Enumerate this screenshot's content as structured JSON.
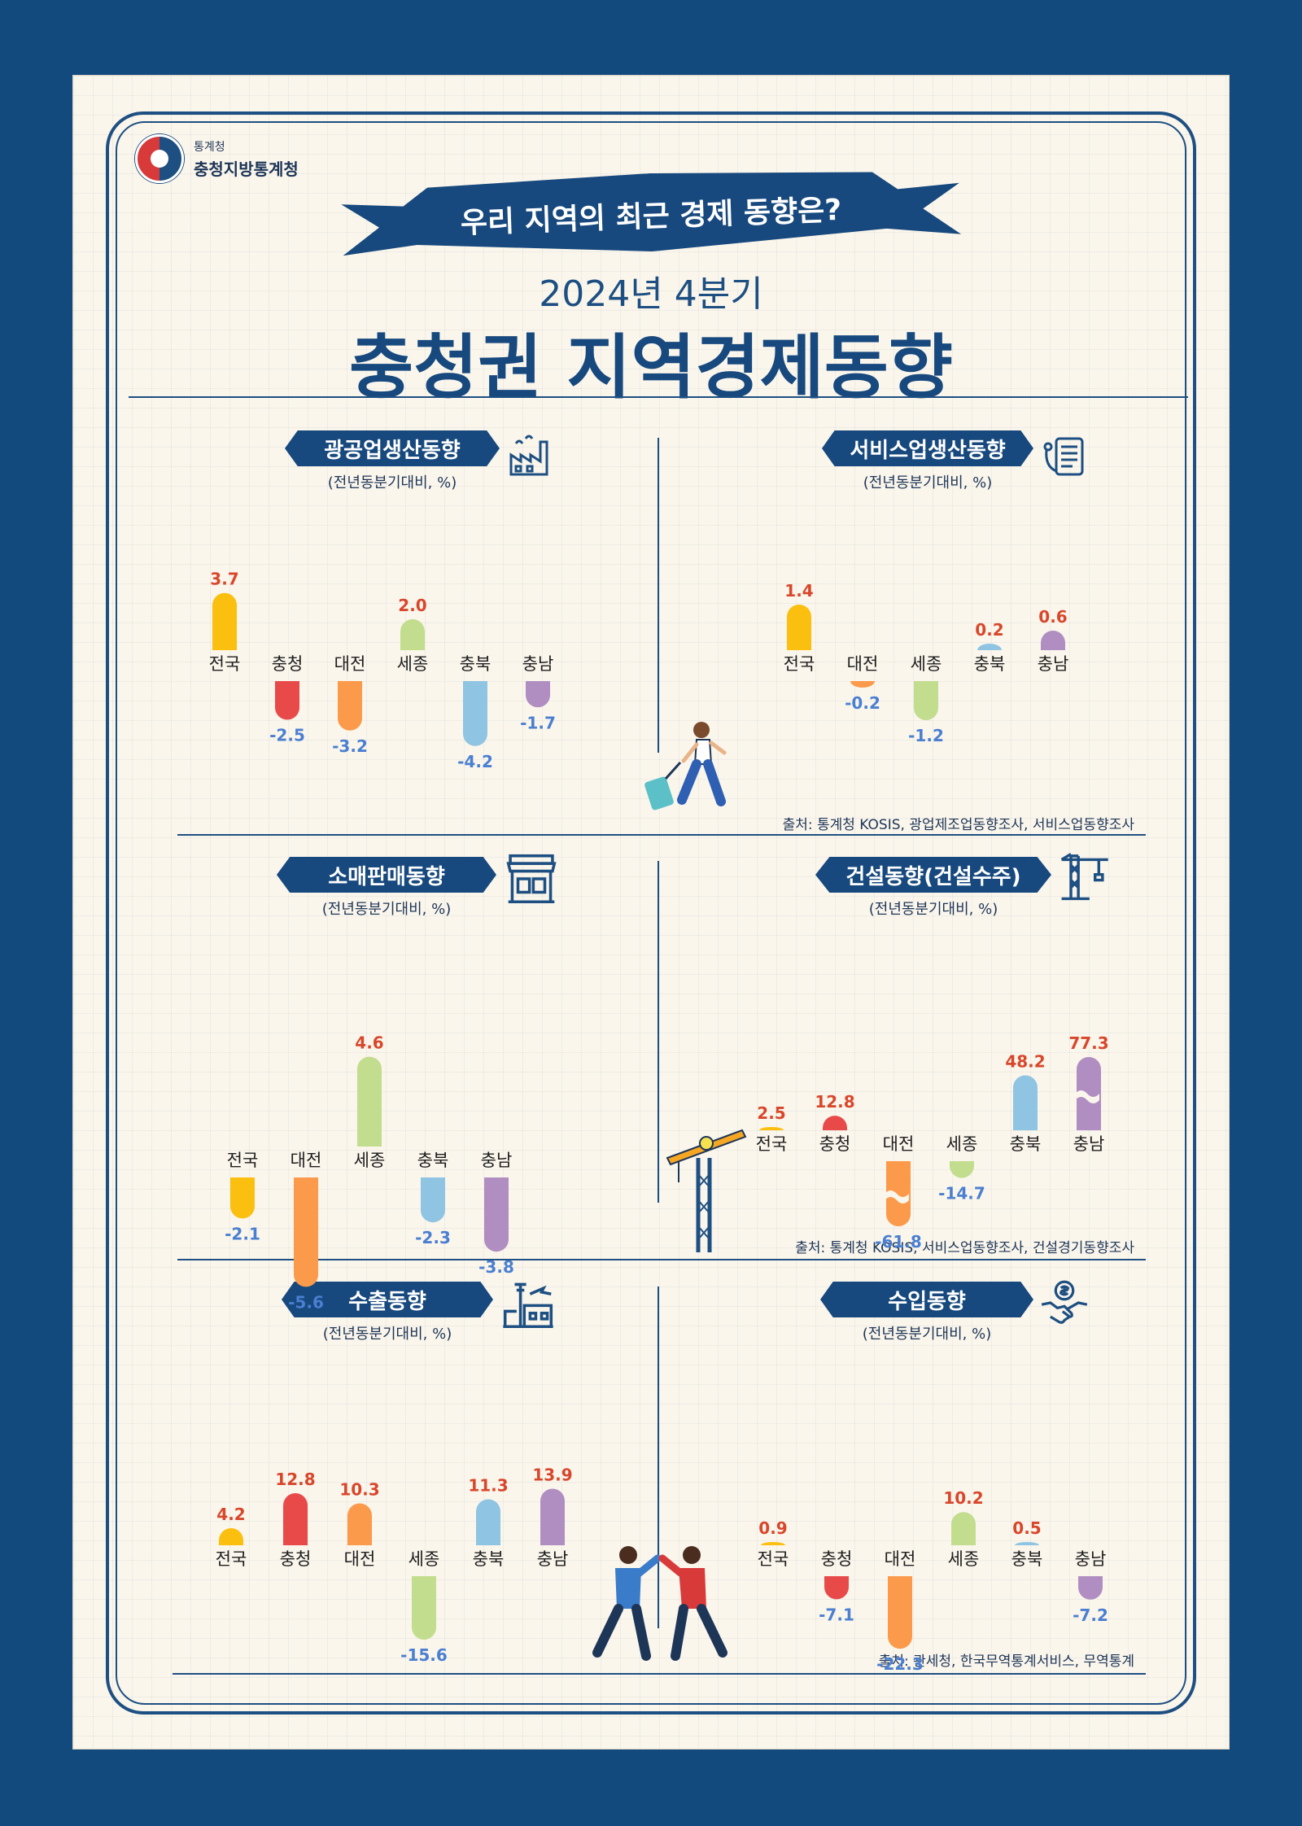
{
  "logo": {
    "line1": "통계청",
    "line2": "충청지방통계청"
  },
  "banner": "우리 지역의 최근 경제 동향은?",
  "subtitle": "2024년 4분기",
  "title": "충청권 지역경제동향",
  "colors": {
    "navy": "#17497e",
    "positive": "#d9472b",
    "negative": "#4a7fd1"
  },
  "sections": [
    {
      "title": "광공업생산동향",
      "subtitle": "(전년동분기대비, %)",
      "icon": "factory-icon"
    },
    {
      "title": "서비스업생산동향",
      "subtitle": "(전년동분기대비, %)",
      "icon": "service-icon"
    },
    {
      "title": "소매판매동향",
      "subtitle": "(전년동분기대비, %)",
      "icon": "store-icon"
    },
    {
      "title": "건설동향(건설수주)",
      "subtitle": "(전년동분기대비, %)",
      "icon": "crane-icon"
    },
    {
      "title": "수출동향",
      "subtitle": "(전년동분기대비, %)",
      "icon": "export-port-icon"
    },
    {
      "title": "수입동향",
      "subtitle": "(전년동분기대비, %)",
      "icon": "handshake-money-icon"
    }
  ],
  "sources": [
    "출처: 통계청 KOSIS, 광업제조업동향조사, 서비스업동향조사",
    "출처: 통계청 KOSIS, 서비스업동향조사, 건설경기동향조사",
    "출처: 관세청, 한국무역통계서비스, 무역통계"
  ],
  "chart_data": [
    {
      "type": "bar",
      "categories": [
        "전국",
        "충청",
        "대전",
        "세종",
        "충북",
        "충남"
      ],
      "values": [
        3.7,
        -2.5,
        -3.2,
        2.0,
        -4.2,
        -1.7
      ],
      "colors": [
        "#fbbf0f",
        "#e84a4a",
        "#fb9a4b",
        "#c2dd8d",
        "#8fc4e3",
        "#b08ec2"
      ],
      "value_labels": [
        "3.7",
        "-2.5",
        "-3.2",
        "2.0",
        "-4.2",
        "-1.7"
      ]
    },
    {
      "type": "bar",
      "categories": [
        "전국",
        "대전",
        "세종",
        "충북",
        "충남"
      ],
      "values": [
        1.4,
        -0.2,
        -1.2,
        0.2,
        0.6
      ],
      "colors": [
        "#fbbf0f",
        "#fb9a4b",
        "#c2dd8d",
        "#8fc4e3",
        "#b08ec2"
      ],
      "value_labels": [
        "1.4",
        "-0.2",
        "-1.2",
        "0.2",
        "0.6"
      ]
    },
    {
      "type": "bar",
      "categories": [
        "전국",
        "대전",
        "세종",
        "충북",
        "충남"
      ],
      "values": [
        -2.1,
        -5.6,
        4.6,
        -2.3,
        -3.8
      ],
      "colors": [
        "#fbbf0f",
        "#fb9a4b",
        "#c2dd8d",
        "#8fc4e3",
        "#b08ec2"
      ],
      "value_labels": [
        "-2.1",
        "-5.6",
        "4.6",
        "-2.3",
        "-3.8"
      ]
    },
    {
      "type": "bar",
      "categories": [
        "전국",
        "충청",
        "대전",
        "세종",
        "충북",
        "충남"
      ],
      "values": [
        2.5,
        12.8,
        -61.8,
        -14.7,
        48.2,
        77.3
      ],
      "colors": [
        "#fbbf0f",
        "#e84a4a",
        "#fb9a4b",
        "#c2dd8d",
        "#8fc4e3",
        "#b08ec2"
      ],
      "value_labels": [
        "2.5",
        "12.8",
        "-61.8",
        "-14.7",
        "48.2",
        "77.3"
      ],
      "broken_axis": true
    },
    {
      "type": "bar",
      "categories": [
        "전국",
        "충청",
        "대전",
        "세종",
        "충북",
        "충남"
      ],
      "values": [
        4.2,
        12.8,
        10.3,
        -15.6,
        11.3,
        13.9
      ],
      "colors": [
        "#fbbf0f",
        "#e84a4a",
        "#fb9a4b",
        "#c2dd8d",
        "#8fc4e3",
        "#b08ec2"
      ],
      "value_labels": [
        "4.2",
        "12.8",
        "10.3",
        "-15.6",
        "11.3",
        "13.9"
      ]
    },
    {
      "type": "bar",
      "categories": [
        "전국",
        "충청",
        "대전",
        "세종",
        "충북",
        "충남"
      ],
      "values": [
        0.9,
        -7.1,
        -22.3,
        10.2,
        0.5,
        -7.2
      ],
      "colors": [
        "#fbbf0f",
        "#e84a4a",
        "#fb9a4b",
        "#c2dd8d",
        "#8fc4e3",
        "#b08ec2"
      ],
      "value_labels": [
        "0.9",
        "-7.1",
        "-22.3",
        "10.2",
        "0.5",
        "-7.2"
      ]
    }
  ]
}
